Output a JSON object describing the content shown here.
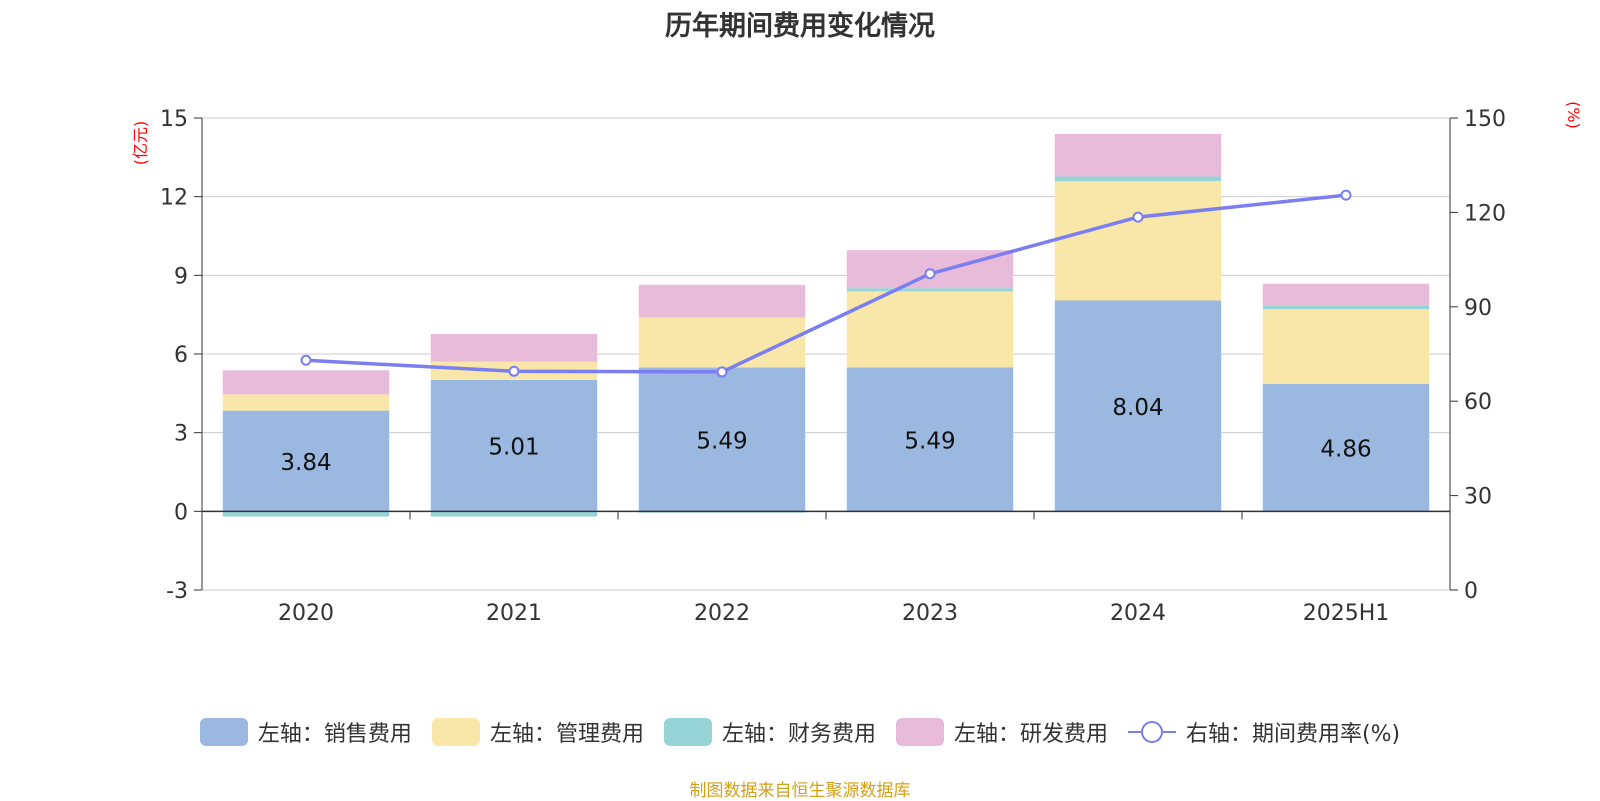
{
  "chart_data": {
    "type": "bar",
    "title": "历年期间费用变化情况",
    "categories": [
      "2020",
      "2021",
      "2022",
      "2023",
      "2024",
      "2025H1"
    ],
    "series": [
      {
        "name": "左轴：销售费用",
        "axis": "left",
        "kind": "bar",
        "color": "#9bb8e1",
        "values": [
          3.84,
          5.01,
          5.49,
          5.49,
          8.04,
          4.86
        ]
      },
      {
        "name": "左轴：管理费用",
        "axis": "left",
        "kind": "bar",
        "color": "#f8e7a8",
        "values": [
          0.62,
          0.7,
          1.9,
          2.9,
          4.55,
          2.85
        ]
      },
      {
        "name": "左轴：财务费用",
        "axis": "left",
        "kind": "bar",
        "color": "#97d4d6",
        "values": [
          -0.2,
          -0.2,
          -0.05,
          0.12,
          0.18,
          0.12
        ]
      },
      {
        "name": "左轴：研发费用",
        "axis": "left",
        "kind": "bar",
        "color": "#e8bbdb",
        "values": [
          0.92,
          1.05,
          1.25,
          1.45,
          1.62,
          0.85
        ]
      },
      {
        "name": "右轴：期间费用率(%)",
        "axis": "right",
        "kind": "line",
        "color": "#7b7ef0",
        "values": [
          73.0,
          69.5,
          69.3,
          100.5,
          118.5,
          125.5
        ]
      }
    ],
    "data_labels": [
      "3.84",
      "5.01",
      "5.49",
      "5.49",
      "8.04",
      "4.86"
    ],
    "left_axis": {
      "label": "(亿元)",
      "ylim": [
        -3,
        15
      ],
      "ticks": [
        "-3",
        "0",
        "3",
        "6",
        "9",
        "12",
        "15"
      ]
    },
    "right_axis": {
      "label": "(%)",
      "ylim": [
        0,
        150
      ],
      "ticks": [
        "0",
        "30",
        "60",
        "90",
        "120",
        "150"
      ]
    },
    "grid": true,
    "legend_position": "bottom"
  },
  "source_note": "制图数据来自恒生聚源数据库",
  "colors": {
    "axis_label": "#ff0000",
    "grid": "#cccccc",
    "axis": "#333333"
  }
}
